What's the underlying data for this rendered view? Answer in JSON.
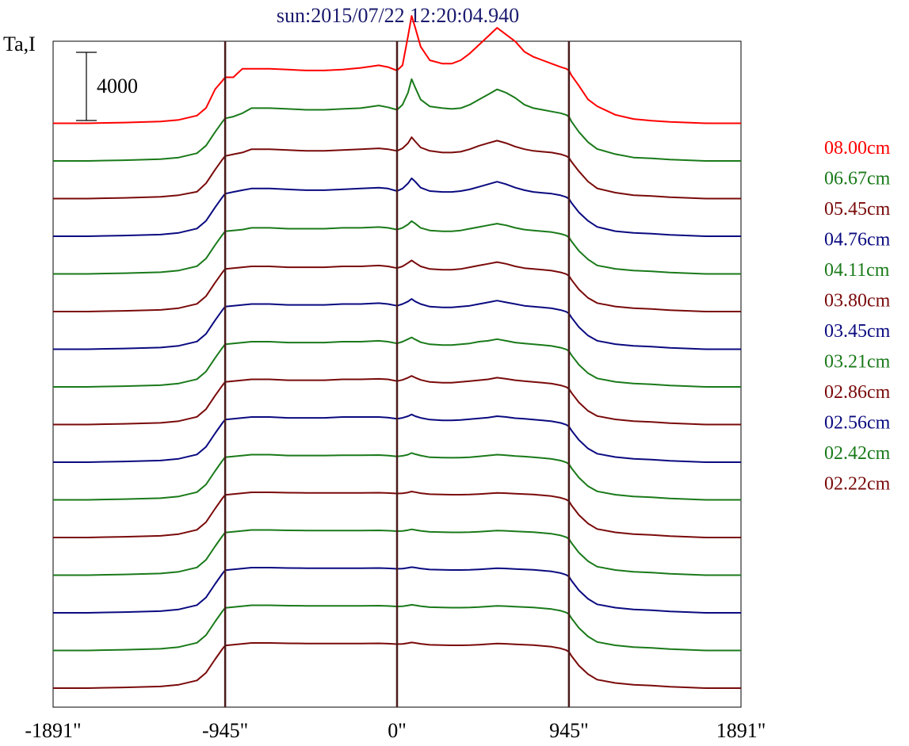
{
  "chart_data": {
    "type": "line",
    "title": "sun:2015/07/22 12:20:04.940",
    "ylabel": "Ta,I",
    "scale_bar_label": "4000",
    "scale_bar_value": 4000,
    "x_ticks": [
      {
        "value": -1891,
        "label": "-1891\""
      },
      {
        "value": -945,
        "label": "-945\""
      },
      {
        "value": 0,
        "label": "0\""
      },
      {
        "value": 945,
        "label": "945\""
      },
      {
        "value": 1891,
        "label": "1891\""
      }
    ],
    "xlim": [
      -1891,
      1891
    ],
    "vertical_lines_at": [
      -945,
      0,
      945
    ],
    "offset_step": 1100,
    "x": [
      -1891,
      -1700,
      -1500,
      -1300,
      -1200,
      -1100,
      -1050,
      -1000,
      -960,
      -945,
      -900,
      -850,
      -800,
      -700,
      -600,
      -500,
      -400,
      -300,
      -200,
      -100,
      -50,
      0,
      30,
      60,
      80,
      100,
      130,
      180,
      250,
      300,
      350,
      400,
      450,
      500,
      550,
      600,
      650,
      700,
      750,
      800,
      850,
      900,
      930,
      945,
      960,
      1000,
      1050,
      1100,
      1200,
      1300,
      1400,
      1500,
      1600,
      1700,
      1891
    ],
    "series": [
      {
        "name": "08.00cm",
        "color": "#ff0000",
        "values": [
          0,
          0,
          40,
          100,
          200,
          450,
          900,
          2000,
          2500,
          2700,
          2700,
          3200,
          3200,
          3200,
          3150,
          3100,
          3100,
          3150,
          3250,
          3400,
          3300,
          3100,
          3400,
          5100,
          6300,
          5600,
          4500,
          3700,
          3500,
          3500,
          3700,
          4100,
          4600,
          5100,
          5600,
          5200,
          4800,
          4200,
          3900,
          3700,
          3500,
          3300,
          3200,
          3100,
          2800,
          2200,
          1400,
          1000,
          500,
          250,
          150,
          80,
          40,
          0,
          0
        ]
      },
      {
        "name": "06.67cm",
        "color": "#1a7a1a",
        "values": [
          0,
          0,
          40,
          100,
          200,
          450,
          900,
          1700,
          2300,
          2500,
          2600,
          2800,
          3100,
          3100,
          3050,
          3000,
          3000,
          3050,
          3100,
          3250,
          3150,
          3000,
          3300,
          4000,
          4800,
          4300,
          3600,
          3200,
          3100,
          3050,
          3100,
          3300,
          3600,
          3900,
          4200,
          4000,
          3700,
          3300,
          3100,
          3000,
          2900,
          2800,
          2700,
          2600,
          2300,
          1700,
          1100,
          700,
          400,
          200,
          150,
          80,
          40,
          0,
          0
        ]
      },
      {
        "name": "05.45cm",
        "color": "#7a0a0a",
        "values": [
          0,
          0,
          40,
          100,
          200,
          400,
          900,
          1700,
          2300,
          2500,
          2600,
          2700,
          2900,
          2900,
          2850,
          2800,
          2800,
          2850,
          2900,
          2950,
          2900,
          2800,
          2950,
          3250,
          3600,
          3350,
          3000,
          2800,
          2700,
          2700,
          2750,
          2900,
          3100,
          3250,
          3400,
          3250,
          3050,
          2900,
          2800,
          2750,
          2700,
          2600,
          2500,
          2400,
          2150,
          1600,
          1000,
          600,
          350,
          200,
          150,
          80,
          40,
          0,
          0
        ]
      },
      {
        "name": "04.76cm",
        "color": "#0a0a80",
        "values": [
          0,
          0,
          40,
          100,
          200,
          450,
          900,
          1700,
          2300,
          2500,
          2600,
          2700,
          2800,
          2800,
          2750,
          2700,
          2700,
          2750,
          2800,
          2850,
          2800,
          2650,
          2800,
          3100,
          3400,
          3200,
          2850,
          2650,
          2600,
          2600,
          2650,
          2750,
          2900,
          3050,
          3200,
          3050,
          2850,
          2700,
          2600,
          2550,
          2500,
          2400,
          2300,
          2200,
          1950,
          1400,
          900,
          550,
          300,
          200,
          150,
          80,
          40,
          0,
          0
        ]
      },
      {
        "name": "04.11cm",
        "color": "#1a7a1a",
        "values": [
          0,
          0,
          40,
          100,
          200,
          450,
          900,
          1700,
          2300,
          2500,
          2550,
          2600,
          2700,
          2700,
          2650,
          2650,
          2650,
          2700,
          2700,
          2750,
          2700,
          2600,
          2700,
          2900,
          3100,
          2950,
          2700,
          2550,
          2500,
          2500,
          2550,
          2650,
          2750,
          2850,
          2950,
          2850,
          2700,
          2600,
          2550,
          2500,
          2450,
          2350,
          2250,
          2150,
          1900,
          1350,
          850,
          500,
          300,
          200,
          150,
          80,
          40,
          0,
          0
        ]
      },
      {
        "name": "03.80cm",
        "color": "#7a0a0a",
        "values": [
          0,
          0,
          40,
          100,
          200,
          450,
          900,
          1700,
          2300,
          2500,
          2550,
          2600,
          2650,
          2650,
          2600,
          2600,
          2600,
          2650,
          2650,
          2700,
          2650,
          2550,
          2650,
          2850,
          3000,
          2850,
          2650,
          2500,
          2450,
          2450,
          2500,
          2600,
          2700,
          2800,
          2900,
          2800,
          2650,
          2550,
          2500,
          2450,
          2400,
          2300,
          2200,
          2100,
          1850,
          1300,
          800,
          500,
          300,
          200,
          150,
          80,
          40,
          0,
          0
        ]
      },
      {
        "name": "03.45cm",
        "color": "#0a0a80",
        "values": [
          0,
          0,
          40,
          100,
          200,
          450,
          900,
          1700,
          2300,
          2500,
          2550,
          2600,
          2650,
          2650,
          2600,
          2600,
          2600,
          2650,
          2650,
          2700,
          2650,
          2550,
          2650,
          2800,
          2950,
          2800,
          2650,
          2500,
          2450,
          2450,
          2500,
          2550,
          2650,
          2750,
          2850,
          2750,
          2650,
          2550,
          2500,
          2450,
          2400,
          2300,
          2200,
          2100,
          1850,
          1300,
          800,
          500,
          300,
          200,
          150,
          80,
          40,
          0,
          0
        ]
      },
      {
        "name": "03.21cm",
        "color": "#1a7a1a",
        "values": [
          0,
          0,
          40,
          100,
          200,
          450,
          900,
          1700,
          2300,
          2500,
          2550,
          2600,
          2650,
          2650,
          2600,
          2600,
          2600,
          2650,
          2650,
          2700,
          2650,
          2550,
          2650,
          2800,
          2900,
          2780,
          2620,
          2500,
          2450,
          2450,
          2500,
          2550,
          2650,
          2700,
          2800,
          2700,
          2600,
          2550,
          2500,
          2450,
          2400,
          2300,
          2200,
          2100,
          1850,
          1300,
          800,
          500,
          300,
          200,
          150,
          80,
          40,
          0,
          0
        ]
      },
      {
        "name": "02.86cm",
        "color": "#7a0a0a",
        "values": [
          0,
          0,
          40,
          100,
          200,
          450,
          900,
          1700,
          2300,
          2500,
          2550,
          2600,
          2650,
          2650,
          2600,
          2600,
          2600,
          2650,
          2650,
          2680,
          2650,
          2550,
          2620,
          2750,
          2850,
          2750,
          2620,
          2500,
          2450,
          2450,
          2500,
          2550,
          2600,
          2650,
          2750,
          2680,
          2600,
          2550,
          2500,
          2450,
          2400,
          2300,
          2200,
          2100,
          1850,
          1300,
          800,
          500,
          300,
          200,
          150,
          80,
          40,
          0,
          0
        ]
      },
      {
        "name": "02.56cm",
        "color": "#0a0a80",
        "values": [
          0,
          0,
          40,
          100,
          200,
          450,
          900,
          1700,
          2300,
          2500,
          2550,
          2600,
          2650,
          2650,
          2600,
          2600,
          2600,
          2650,
          2650,
          2650,
          2620,
          2550,
          2600,
          2700,
          2800,
          2700,
          2600,
          2500,
          2450,
          2450,
          2480,
          2520,
          2570,
          2620,
          2700,
          2650,
          2580,
          2550,
          2500,
          2450,
          2400,
          2300,
          2200,
          2100,
          1850,
          1300,
          800,
          500,
          300,
          200,
          150,
          80,
          40,
          0,
          0
        ]
      },
      {
        "name": "02.42cm",
        "color": "#1a7a1a",
        "values": [
          0,
          0,
          40,
          100,
          200,
          450,
          900,
          1700,
          2300,
          2500,
          2550,
          2600,
          2650,
          2650,
          2600,
          2600,
          2600,
          2620,
          2620,
          2630,
          2600,
          2550,
          2580,
          2650,
          2750,
          2680,
          2600,
          2500,
          2480,
          2470,
          2480,
          2500,
          2550,
          2600,
          2650,
          2620,
          2570,
          2540,
          2500,
          2450,
          2400,
          2300,
          2200,
          2100,
          1850,
          1300,
          800,
          500,
          300,
          200,
          150,
          80,
          40,
          0,
          0
        ]
      },
      {
        "name": "02.22cm",
        "color": "#7a0a0a",
        "values": [
          0,
          0,
          40,
          100,
          200,
          450,
          900,
          1700,
          2300,
          2500,
          2550,
          2600,
          2650,
          2650,
          2630,
          2620,
          2620,
          2620,
          2620,
          2630,
          2610,
          2580,
          2590,
          2640,
          2700,
          2660,
          2600,
          2540,
          2520,
          2510,
          2510,
          2520,
          2550,
          2580,
          2620,
          2600,
          2570,
          2550,
          2520,
          2480,
          2430,
          2330,
          2230,
          2130,
          1880,
          1320,
          820,
          500,
          300,
          200,
          150,
          80,
          40,
          0,
          0
        ]
      },
      {
        "name": "",
        "color": "#1a7a1a",
        "values": [
          0,
          0,
          40,
          100,
          200,
          450,
          900,
          1700,
          2300,
          2500,
          2550,
          2600,
          2650,
          2650,
          2630,
          2620,
          2620,
          2620,
          2620,
          2630,
          2610,
          2580,
          2590,
          2640,
          2690,
          2650,
          2600,
          2540,
          2520,
          2510,
          2510,
          2520,
          2550,
          2580,
          2620,
          2600,
          2570,
          2550,
          2520,
          2480,
          2430,
          2330,
          2230,
          2130,
          1880,
          1320,
          820,
          500,
          300,
          200,
          150,
          80,
          40,
          0,
          0
        ]
      },
      {
        "name": "",
        "color": "#0a0a80",
        "values": [
          0,
          0,
          40,
          100,
          200,
          450,
          900,
          1700,
          2300,
          2500,
          2550,
          2600,
          2650,
          2650,
          2630,
          2620,
          2620,
          2620,
          2620,
          2630,
          2610,
          2580,
          2590,
          2640,
          2680,
          2650,
          2600,
          2540,
          2520,
          2510,
          2510,
          2520,
          2550,
          2580,
          2620,
          2600,
          2570,
          2550,
          2520,
          2480,
          2430,
          2330,
          2230,
          2130,
          1880,
          1320,
          820,
          500,
          300,
          200,
          150,
          80,
          40,
          0,
          0
        ]
      },
      {
        "name": "",
        "color": "#1a7a1a",
        "values": [
          0,
          0,
          40,
          100,
          200,
          450,
          900,
          1700,
          2300,
          2500,
          2550,
          2600,
          2650,
          2650,
          2630,
          2620,
          2620,
          2620,
          2620,
          2630,
          2610,
          2580,
          2590,
          2640,
          2680,
          2650,
          2600,
          2540,
          2520,
          2510,
          2510,
          2520,
          2550,
          2580,
          2620,
          2600,
          2570,
          2550,
          2520,
          2480,
          2430,
          2330,
          2230,
          2130,
          1880,
          1320,
          820,
          500,
          300,
          200,
          150,
          80,
          40,
          0,
          0
        ]
      },
      {
        "name": "",
        "color": "#7a0a0a",
        "values": [
          0,
          0,
          40,
          100,
          200,
          450,
          900,
          1700,
          2300,
          2500,
          2550,
          2600,
          2650,
          2650,
          2630,
          2620,
          2620,
          2620,
          2620,
          2630,
          2610,
          2580,
          2590,
          2640,
          2680,
          2650,
          2600,
          2540,
          2520,
          2510,
          2510,
          2520,
          2550,
          2580,
          2620,
          2600,
          2570,
          2550,
          2520,
          2480,
          2430,
          2330,
          2230,
          2130,
          1880,
          1320,
          820,
          500,
          300,
          200,
          150,
          80,
          40,
          0,
          0
        ]
      }
    ],
    "grid": false,
    "legend_position": "right"
  },
  "colors": {
    "title": "#1a1a6e",
    "vertical_lines": "#4a1a1a",
    "frame": "#000000"
  }
}
